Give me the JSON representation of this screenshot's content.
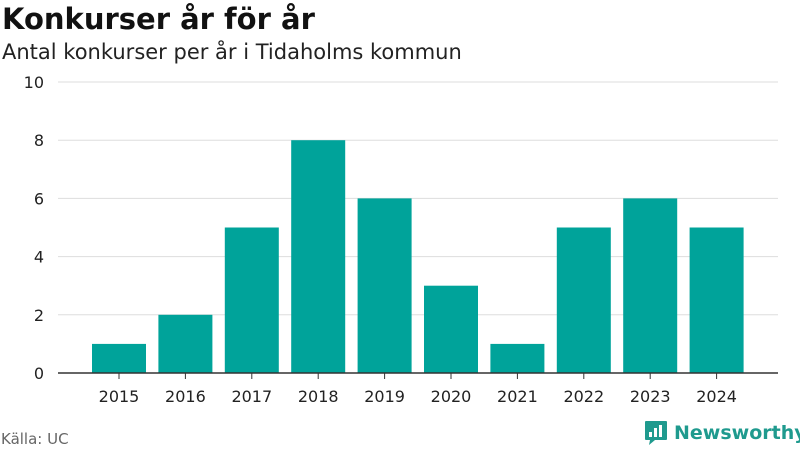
{
  "header": {
    "title": "Konkurser år för år",
    "subtitle": "Antal konkurser per år i Tidaholms kommun"
  },
  "footer": {
    "source": "Källa: UC",
    "brand": "Newsworthy",
    "brand_icon": "newsworthy-logo-icon"
  },
  "colors": {
    "bar": "#00a39a",
    "grid": "#dddddd",
    "axis": "#333333",
    "brand": "#1f9a8e"
  },
  "chart_data": {
    "type": "bar",
    "title": "Konkurser år för år",
    "subtitle": "Antal konkurser per år i Tidaholms kommun",
    "xlabel": "",
    "ylabel": "",
    "categories": [
      "2015",
      "2016",
      "2017",
      "2018",
      "2019",
      "2020",
      "2021",
      "2022",
      "2023",
      "2024"
    ],
    "values": [
      1,
      2,
      5,
      8,
      6,
      3,
      1,
      5,
      6,
      5
    ],
    "ylim": [
      0,
      10
    ],
    "yticks": [
      0,
      2,
      4,
      6,
      8,
      10
    ],
    "grid": true,
    "legend": "none"
  }
}
